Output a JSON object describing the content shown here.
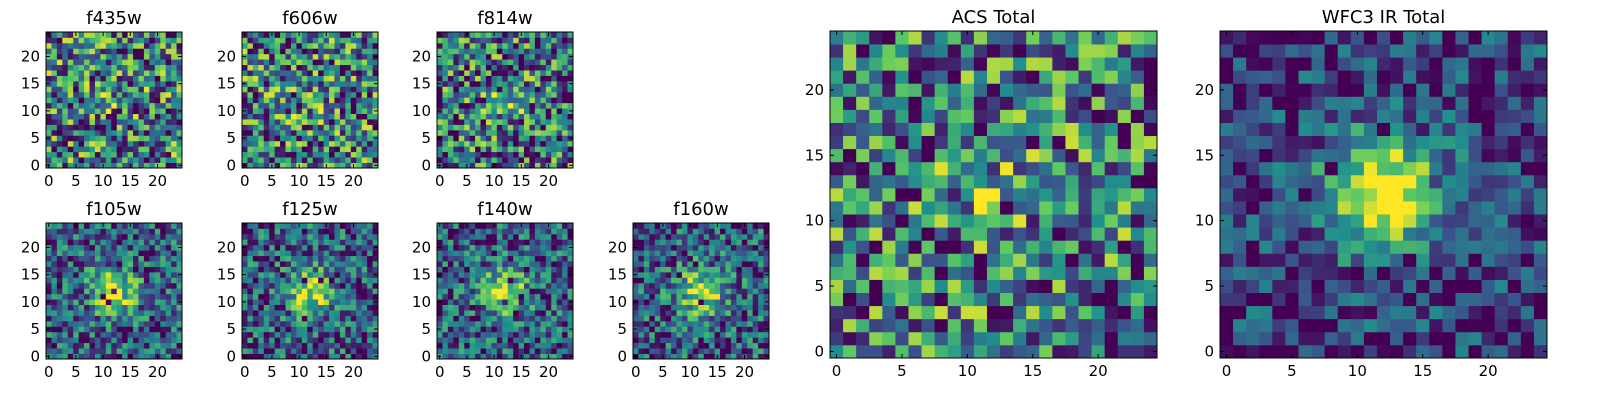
{
  "figure": {
    "colormap": "viridis",
    "colors": {
      "viridis_stops": [
        "#440154",
        "#3b528b",
        "#21918c",
        "#5ec962",
        "#fde725"
      ],
      "frame": "#000000",
      "background": "#ffffff"
    }
  },
  "chart_data": [
    {
      "type": "heatmap",
      "title": "f435w",
      "xticks": [
        "0",
        "5",
        "10",
        "15",
        "20"
      ],
      "yticks": [
        "0",
        "5",
        "10",
        "15",
        "20"
      ],
      "grid_size": [
        25,
        25
      ],
      "xlim": [
        -0.5,
        24.5
      ],
      "ylim": [
        -0.5,
        24.5
      ],
      "grid": false,
      "seed": 11,
      "peak": 0.1,
      "sigma": 3.0,
      "noise": 1.0,
      "floor": 0.45
    },
    {
      "type": "heatmap",
      "title": "f606w",
      "xticks": [
        "0",
        "5",
        "10",
        "15",
        "20"
      ],
      "yticks": [
        "0",
        "5",
        "10",
        "15",
        "20"
      ],
      "grid_size": [
        25,
        25
      ],
      "xlim": [
        -0.5,
        24.5
      ],
      "ylim": [
        -0.5,
        24.5
      ],
      "grid": false,
      "seed": 23,
      "peak": 0.1,
      "sigma": 3.0,
      "noise": 1.0,
      "floor": 0.45
    },
    {
      "type": "heatmap",
      "title": "f814w",
      "xticks": [
        "0",
        "5",
        "10",
        "15",
        "20"
      ],
      "yticks": [
        "0",
        "5",
        "10",
        "15",
        "20"
      ],
      "grid_size": [
        25,
        25
      ],
      "xlim": [
        -0.5,
        24.5
      ],
      "ylim": [
        -0.5,
        24.5
      ],
      "grid": false,
      "seed": 37,
      "peak": 0.25,
      "sigma": 2.5,
      "noise": 1.0,
      "floor": 0.4
    },
    {
      "type": "heatmap",
      "title": "f105w",
      "xticks": [
        "0",
        "5",
        "10",
        "15",
        "20"
      ],
      "yticks": [
        "0",
        "5",
        "10",
        "15",
        "20"
      ],
      "grid_size": [
        25,
        25
      ],
      "xlim": [
        -0.5,
        24.5
      ],
      "ylim": [
        -0.5,
        24.5
      ],
      "grid": false,
      "seed": 41,
      "peak": 0.55,
      "sigma": 3.0,
      "noise": 0.7,
      "floor": 0.3
    },
    {
      "type": "heatmap",
      "title": "f125w",
      "xticks": [
        "0",
        "5",
        "10",
        "15",
        "20"
      ],
      "yticks": [
        "0",
        "5",
        "10",
        "15",
        "20"
      ],
      "grid_size": [
        25,
        25
      ],
      "xlim": [
        -0.5,
        24.5
      ],
      "ylim": [
        -0.5,
        24.5
      ],
      "grid": false,
      "seed": 53,
      "peak": 0.55,
      "sigma": 3.0,
      "noise": 0.7,
      "floor": 0.3
    },
    {
      "type": "heatmap",
      "title": "f140w",
      "xticks": [
        "0",
        "5",
        "10",
        "15",
        "20"
      ],
      "yticks": [
        "0",
        "5",
        "10",
        "15",
        "20"
      ],
      "grid_size": [
        25,
        25
      ],
      "xlim": [
        -0.5,
        24.5
      ],
      "ylim": [
        -0.5,
        24.5
      ],
      "grid": false,
      "seed": 67,
      "peak": 0.55,
      "sigma": 3.0,
      "noise": 0.7,
      "floor": 0.3
    },
    {
      "type": "heatmap",
      "title": "f160w",
      "xticks": [
        "0",
        "5",
        "10",
        "15",
        "20"
      ],
      "yticks": [
        "0",
        "5",
        "10",
        "15",
        "20"
      ],
      "grid_size": [
        25,
        25
      ],
      "xlim": [
        -0.5,
        24.5
      ],
      "ylim": [
        -0.5,
        24.5
      ],
      "grid": false,
      "seed": 79,
      "peak": 0.55,
      "sigma": 3.0,
      "noise": 0.7,
      "floor": 0.3
    },
    {
      "type": "heatmap",
      "title": "ACS Total",
      "xticks": [
        "0",
        "5",
        "10",
        "15",
        "20"
      ],
      "yticks": [
        "0",
        "5",
        "10",
        "15",
        "20"
      ],
      "grid_size": [
        25,
        25
      ],
      "xlim": [
        -0.5,
        24.5
      ],
      "ylim": [
        -0.5,
        24.5
      ],
      "grid": false,
      "seed": 97,
      "peak": 0.25,
      "sigma": 2.5,
      "noise": 1.0,
      "floor": 0.42
    },
    {
      "type": "heatmap",
      "title": "WFC3 IR Total",
      "xticks": [
        "0",
        "5",
        "10",
        "15",
        "20"
      ],
      "yticks": [
        "0",
        "5",
        "10",
        "15",
        "20"
      ],
      "grid_size": [
        25,
        25
      ],
      "xlim": [
        -0.5,
        24.5
      ],
      "ylim": [
        -0.5,
        24.5
      ],
      "grid": false,
      "seed": 131,
      "peak": 0.85,
      "sigma": 3.0,
      "noise": 0.55,
      "floor": 0.2
    }
  ]
}
